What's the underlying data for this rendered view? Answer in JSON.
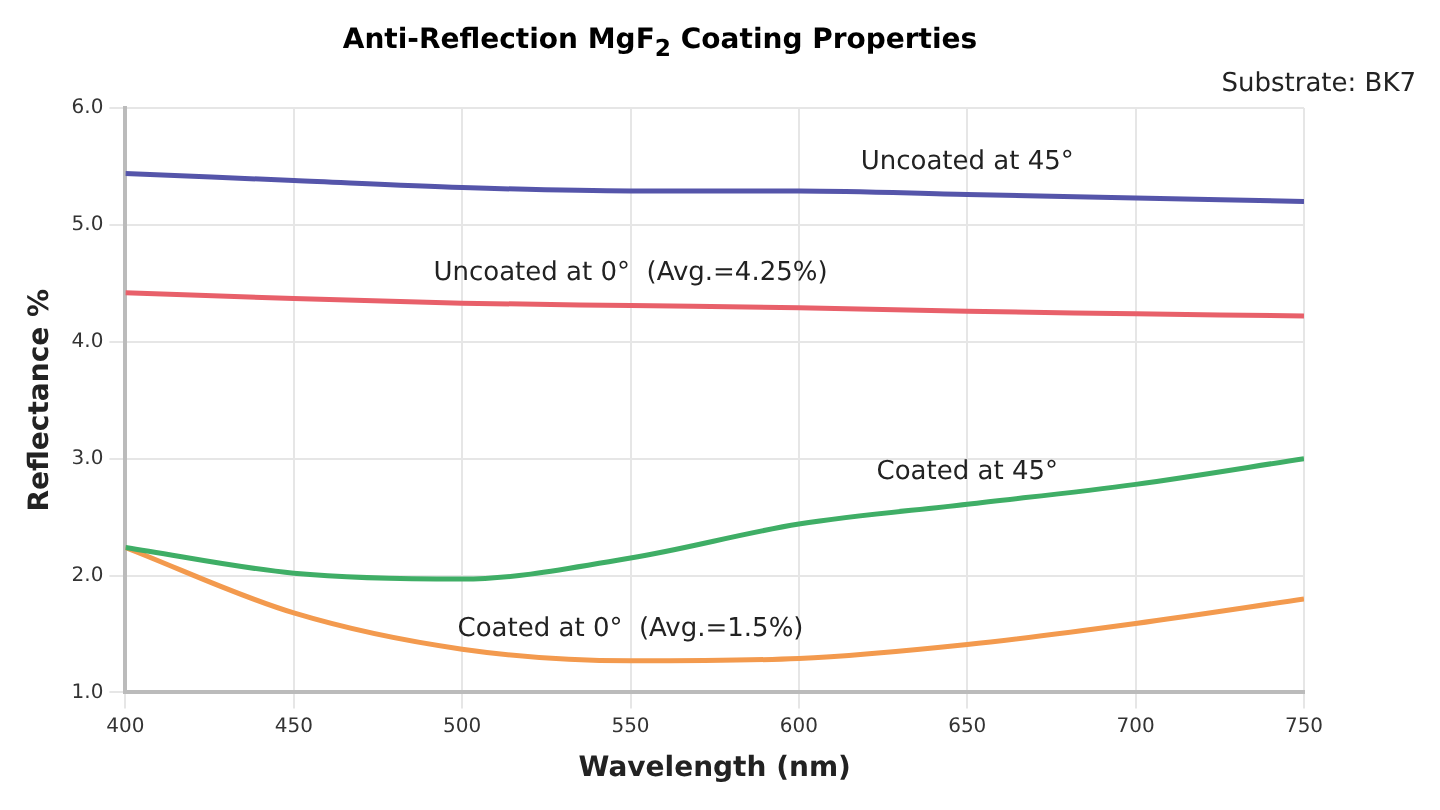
{
  "chart_data": {
    "type": "line",
    "title": "Anti-Reflection MgF$_{2}$ Coating Properties",
    "xlabel": "Wavelength (nm)",
    "ylabel": "Reflectance %",
    "x": [
      400,
      450,
      500,
      550,
      600,
      650,
      700,
      750
    ],
    "series": [
      {
        "name": "Uncoated at 45°",
        "color": "#5555aa",
        "values": [
          5.44,
          5.38,
          5.32,
          5.29,
          5.29,
          5.26,
          5.23,
          5.2
        ]
      },
      {
        "name": "Uncoated at 0°  (Avg.=4.25%)",
        "color": "#e8606a",
        "values": [
          4.42,
          4.37,
          4.33,
          4.31,
          4.29,
          4.26,
          4.24,
          4.22
        ]
      },
      {
        "name": "Coated at 45°",
        "color": "#3fae66",
        "values": [
          2.24,
          2.02,
          1.97,
          2.15,
          2.44,
          2.61,
          2.78,
          3.0
        ]
      },
      {
        "name": "Coated at 0°  (Avg.=1.5%)",
        "color": "#f39a4e",
        "values": [
          2.24,
          1.68,
          1.37,
          1.27,
          1.29,
          1.41,
          1.59,
          1.8
        ]
      }
    ],
    "xlim": [
      400,
      750
    ],
    "xticks": [
      400,
      450,
      500,
      550,
      600,
      650,
      700,
      750
    ],
    "ylim": [
      1.0,
      6.0
    ],
    "yticks": [
      {
        "value": 1,
        "label": "1.0"
      },
      {
        "value": 2,
        "label": "2.0"
      },
      {
        "value": 3,
        "label": "3.0"
      },
      {
        "value": 4,
        "label": "4.0"
      },
      {
        "value": 5,
        "label": "5.0"
      },
      {
        "value": 6,
        "label": "6.0"
      }
    ],
    "grid": true,
    "legend": false,
    "marker": "none",
    "line_style": "solid",
    "annotations": [
      "Substrate: BK7"
    ]
  }
}
